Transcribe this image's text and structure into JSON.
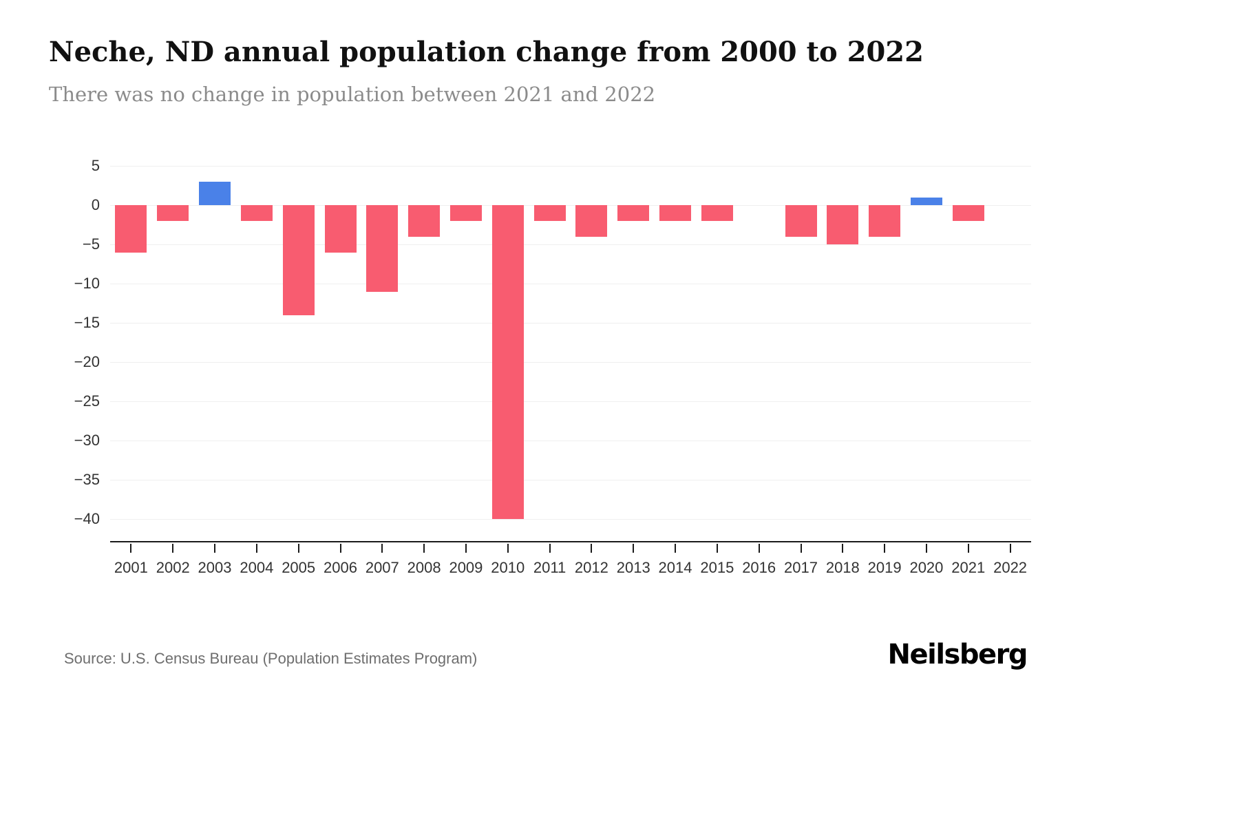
{
  "header": {
    "title": "Neche, ND annual population change from 2000 to 2022",
    "subtitle": "There was no change in population between 2021 and 2022"
  },
  "footer": {
    "source": "Source: U.S. Census Bureau (Population Estimates Program)",
    "brand": "Neilsberg"
  },
  "chart_data": {
    "type": "bar",
    "title": "Neche, ND annual population change from 2000 to 2022",
    "subtitle": "There was no change in population between 2021 and 2022",
    "categories": [
      "2001",
      "2002",
      "2003",
      "2004",
      "2005",
      "2006",
      "2007",
      "2008",
      "2009",
      "2010",
      "2011",
      "2012",
      "2013",
      "2014",
      "2015",
      "2016",
      "2017",
      "2018",
      "2019",
      "2020",
      "2021",
      "2022"
    ],
    "values": [
      -6,
      -2,
      3,
      -2,
      -14,
      -6,
      -11,
      -4,
      -2,
      -40,
      -2,
      -4,
      -2,
      -2,
      -2,
      0,
      -4,
      -5,
      -4,
      1,
      -2,
      0
    ],
    "xlabel": "",
    "ylabel": "",
    "ylim": [
      -43,
      6
    ],
    "yticks": [
      5,
      0,
      -5,
      -10,
      -15,
      -20,
      -25,
      -30,
      -35,
      -40
    ],
    "grid": true,
    "legend": false,
    "colors": {
      "positive": "#4a81e8",
      "negative": "#f85c70",
      "gridline": "#efefef",
      "axis": "#1a1a1a"
    }
  }
}
